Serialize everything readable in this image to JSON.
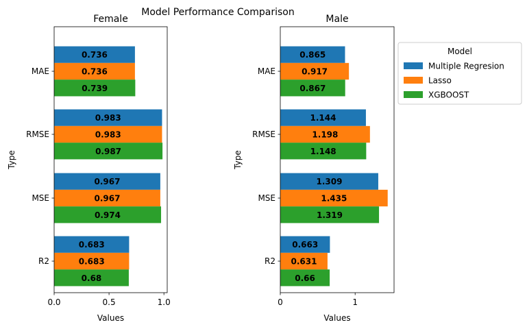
{
  "chart_data": {
    "type": "bar",
    "title": "Model Performance Comparison",
    "legend": {
      "title": "Model",
      "placement": "outside-right",
      "entries": [
        "Multiple Regresion",
        "Lasso",
        "XGBOOST"
      ]
    },
    "colors": {
      "Multiple Regresion": "#1f77b4",
      "Lasso": "#ff7f0e",
      "XGBOOST": "#2ca02c"
    },
    "panels": [
      {
        "title": "Female",
        "orientation": "horizontal",
        "ylabel": "Type",
        "xlabel": "Values",
        "categories": [
          "MAE",
          "RMSE",
          "MSE",
          "R2"
        ],
        "xlim": [
          0,
          1.03
        ],
        "xticks": [
          0,
          0.5,
          1.0
        ],
        "xtick_labels": [
          "0.0",
          "0.5",
          "1.0"
        ],
        "series": [
          {
            "name": "Multiple Regresion",
            "values": [
              0.736,
              0.983,
              0.967,
              0.683
            ],
            "labels": [
              "0.736",
              "0.983",
              "0.967",
              "0.683"
            ]
          },
          {
            "name": "Lasso",
            "values": [
              0.736,
              0.983,
              0.967,
              0.683
            ],
            "labels": [
              "0.736",
              "0.983",
              "0.967",
              "0.683"
            ]
          },
          {
            "name": "XGBOOST",
            "values": [
              0.739,
              0.987,
              0.974,
              0.68
            ],
            "labels": [
              "0.739",
              "0.987",
              "0.974",
              "0.68"
            ]
          }
        ]
      },
      {
        "title": "Male",
        "orientation": "horizontal",
        "ylabel": "Type",
        "xlabel": "Values",
        "categories": [
          "MAE",
          "RMSE",
          "MSE",
          "R2"
        ],
        "xlim": [
          0,
          1.52
        ],
        "xticks": [
          0,
          1
        ],
        "xtick_labels": [
          "0",
          "1"
        ],
        "series": [
          {
            "name": "Multiple Regresion",
            "values": [
              0.865,
              1.144,
              1.309,
              0.663
            ],
            "labels": [
              "0.865",
              "1.144",
              "1.309",
              "0.663"
            ]
          },
          {
            "name": "Lasso",
            "values": [
              0.917,
              1.198,
              1.435,
              0.631
            ],
            "labels": [
              "0.917",
              "1.198",
              "1.435",
              "0.631"
            ]
          },
          {
            "name": "XGBOOST",
            "values": [
              0.867,
              1.148,
              1.319,
              0.66
            ],
            "labels": [
              "0.867",
              "1.148",
              "1.319",
              "0.66"
            ]
          }
        ]
      }
    ]
  }
}
